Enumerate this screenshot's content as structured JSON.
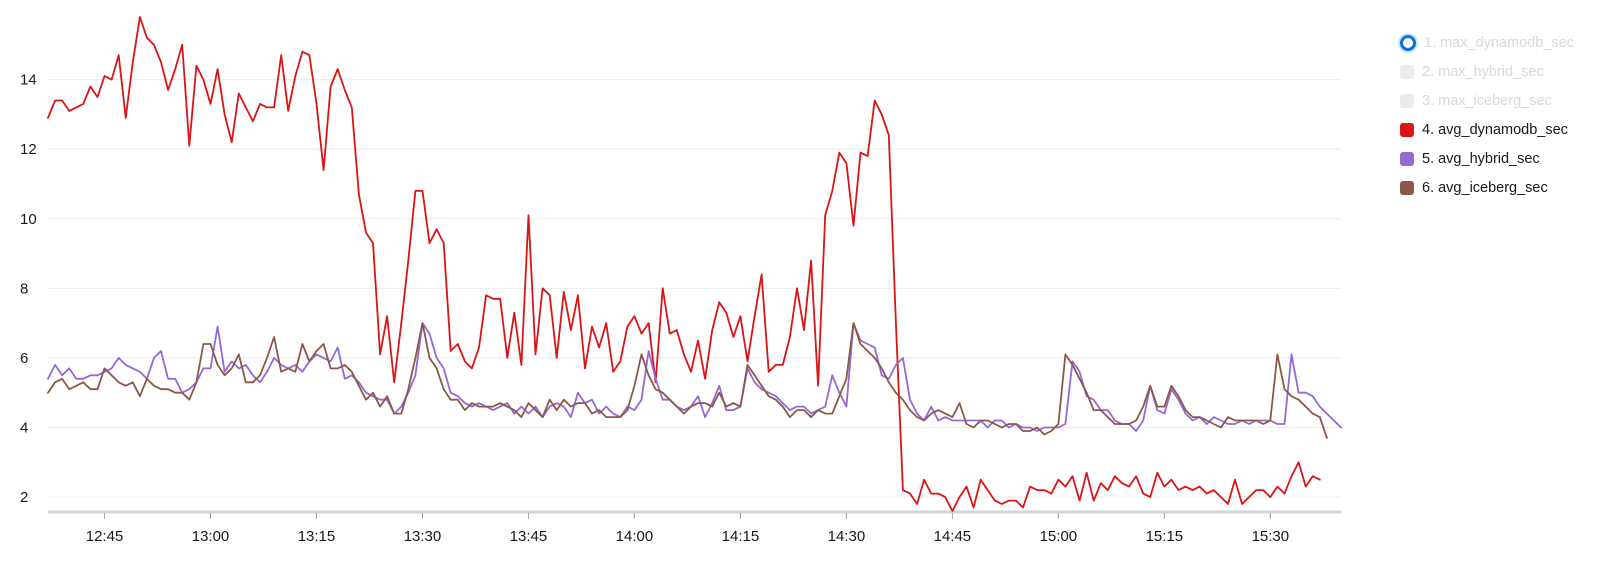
{
  "chart_data": {
    "type": "line",
    "x_start": "12:37",
    "x_interval_min": 1,
    "x_ticks": [
      "12:45",
      "13:00",
      "13:15",
      "13:30",
      "13:45",
      "14:00",
      "14:15",
      "14:30",
      "14:45",
      "15:00",
      "15:15",
      "15:30"
    ],
    "y_ticks": [
      2,
      4,
      6,
      8,
      10,
      12,
      14
    ],
    "ylim": [
      1.6,
      16
    ],
    "grid": true,
    "legend_position": "right",
    "series": [
      {
        "name": "1. max_dynamodb_sec",
        "color": "#0972d3",
        "visible": false,
        "values": []
      },
      {
        "name": "2. max_hybrid_sec",
        "color": "#d5dbdb",
        "visible": false,
        "values": []
      },
      {
        "name": "3. max_iceberg_sec",
        "color": "#d5dbdb",
        "visible": false,
        "values": []
      },
      {
        "name": "4. avg_dynamodb_sec",
        "color": "#d91515",
        "visible": true,
        "values": [
          12.9,
          13.4,
          13.4,
          13.1,
          13.2,
          13.3,
          13.8,
          13.5,
          14.1,
          14,
          14.7,
          12.9,
          14.5,
          15.8,
          15.2,
          15,
          14.5,
          13.7,
          14.3,
          15,
          12.1,
          14.4,
          14,
          13.3,
          14.3,
          13,
          12.2,
          13.6,
          13.2,
          12.8,
          13.3,
          13.2,
          13.2,
          14.7,
          13.1,
          14.1,
          14.8,
          14.7,
          13.3,
          11.4,
          13.8,
          14.3,
          13.7,
          13.2,
          10.7,
          9.6,
          9.3,
          6.1,
          7.2,
          5.3,
          7,
          8.8,
          10.8,
          10.8,
          9.3,
          9.7,
          9.3,
          6.2,
          6.4,
          5.9,
          5.7,
          6.3,
          7.8,
          7.7,
          7.7,
          6,
          7.3,
          5.8,
          10.1,
          6.1,
          8,
          7.8,
          6,
          7.9,
          6.8,
          7.8,
          5.7,
          6.9,
          6.3,
          7,
          5.6,
          5.9,
          6.9,
          7.2,
          6.7,
          7,
          5.3,
          8,
          6.7,
          6.8,
          6.1,
          5.6,
          6.5,
          5.4,
          6.8,
          7.6,
          7.3,
          6.6,
          7.2,
          5.9,
          7.2,
          8.4,
          5.6,
          5.8,
          5.8,
          6.6,
          8,
          6.8,
          8.8,
          5.2,
          10.1,
          10.8,
          11.9,
          11.6,
          9.8,
          11.9,
          11.8,
          13.4,
          13,
          12.4,
          7,
          2.2,
          2.1,
          1.8,
          2.5,
          2.1,
          2.1,
          2,
          1.6,
          2,
          2.3,
          1.7,
          2.5,
          2.2,
          1.9,
          1.8,
          1.9,
          1.9,
          1.7,
          2.3,
          2.2,
          2.2,
          2.1,
          2.5,
          2.3,
          2.6,
          1.9,
          2.7,
          1.9,
          2.4,
          2.2,
          2.6,
          2.4,
          2.3,
          2.6,
          2.1,
          2,
          2.7,
          2.3,
          2.5,
          2.2,
          2.3,
          2.2,
          2.3,
          2.1,
          2.2,
          2,
          1.8,
          2.5,
          1.8,
          2,
          2.2,
          2.2,
          2,
          2.3,
          2.1,
          2.6,
          3,
          2.3,
          2.6,
          2.5
        ]
      },
      {
        "name": "5. avg_hybrid_sec",
        "color": "#9469d6",
        "visible": true,
        "values": [
          5.4,
          5.8,
          5.5,
          5.7,
          5.4,
          5.4,
          5.5,
          5.5,
          5.6,
          5.7,
          6,
          5.8,
          5.7,
          5.6,
          5.4,
          6,
          6.2,
          5.4,
          5.4,
          5,
          5.1,
          5.3,
          5.7,
          5.7,
          6.9,
          5.6,
          5.9,
          5.7,
          5.8,
          5.5,
          5.3,
          5.6,
          6,
          5.8,
          5.7,
          5.8,
          5.6,
          5.9,
          6.1,
          6,
          5.9,
          6.3,
          5.4,
          5.5,
          5.3,
          5,
          4.9,
          4.8,
          4.8,
          4.4,
          4.6,
          5,
          5.5,
          7,
          6.7,
          6,
          5.7,
          5,
          4.9,
          4.7,
          4.6,
          4.7,
          4.6,
          4.5,
          4.6,
          4.7,
          4.4,
          4.6,
          4.4,
          4.6,
          4.3,
          4.6,
          4.7,
          4.6,
          4.3,
          5,
          4.7,
          4.8,
          4.4,
          4.6,
          4.4,
          4.3,
          4.6,
          4.5,
          4.8,
          6.2,
          5.4,
          4.8,
          4.8,
          4.6,
          4.5,
          4.6,
          4.9,
          4.3,
          4.7,
          5.2,
          4.5,
          4.5,
          4.6,
          5.7,
          5.3,
          5.1,
          5,
          4.9,
          4.7,
          4.5,
          4.6,
          4.6,
          4.4,
          4.5,
          4.6,
          5.5,
          5,
          4.6,
          7,
          6.5,
          6.4,
          6.3,
          5.5,
          5.4,
          5.8,
          6,
          4.8,
          4.4,
          4.2,
          4.6,
          4.2,
          4.3,
          4.2,
          4.2,
          4.2,
          4.2,
          4.2,
          4,
          4.2,
          4.2,
          4,
          4.1,
          4,
          4,
          3.9,
          4,
          4,
          4,
          4.1,
          5.9,
          5.6,
          4.9,
          4.8,
          4.5,
          4.5,
          4.2,
          4.1,
          4.1,
          3.9,
          4.2,
          5.2,
          4.5,
          4.4,
          5.1,
          4.8,
          4.4,
          4.2,
          4.3,
          4.1,
          4.3,
          4.2,
          4.1,
          4.1,
          4.2,
          4.1,
          4.2,
          4.2,
          4.2,
          4.1,
          4.1,
          6.1,
          5,
          5,
          4.9,
          4.6,
          4.4,
          4.2,
          4
        ]
      },
      {
        "name": "6. avg_iceberg_sec",
        "color": "#8d5748",
        "visible": true,
        "values": [
          5,
          5.3,
          5.4,
          5.1,
          5.2,
          5.3,
          5.1,
          5.1,
          5.7,
          5.5,
          5.3,
          5.2,
          5.3,
          4.9,
          5.4,
          5.2,
          5.1,
          5.1,
          5,
          5,
          4.8,
          5.3,
          6.4,
          6.4,
          5.8,
          5.5,
          5.7,
          6.1,
          5.3,
          5.3,
          5.5,
          6,
          6.6,
          5.6,
          5.7,
          5.6,
          6.4,
          5.9,
          6.2,
          6.4,
          5.7,
          5.7,
          5.8,
          5.6,
          5.2,
          4.8,
          5,
          4.6,
          4.9,
          4.4,
          4.4,
          5.1,
          6,
          7,
          6,
          5.7,
          5.1,
          4.8,
          4.8,
          4.5,
          4.7,
          4.6,
          4.6,
          4.6,
          4.7,
          4.6,
          4.5,
          4.3,
          4.7,
          4.5,
          4.3,
          4.8,
          4.5,
          4.8,
          4.6,
          4.7,
          4.7,
          4.4,
          4.5,
          4.3,
          4.3,
          4.3,
          4.5,
          5.2,
          6.1,
          5.5,
          5.1,
          5,
          4.8,
          4.6,
          4.4,
          4.6,
          4.7,
          4.7,
          4.6,
          5,
          4.6,
          4.7,
          4.6,
          5.8,
          5.5,
          5.2,
          4.9,
          4.8,
          4.6,
          4.3,
          4.5,
          4.5,
          4.3,
          4.5,
          4.4,
          4.4,
          4.9,
          5.4,
          7,
          6.4,
          6.2,
          6,
          5.7,
          5.3,
          5,
          4.8,
          4.5,
          4.3,
          4.2,
          4.4,
          4.5,
          4.4,
          4.3,
          4.7,
          4.1,
          4,
          4.2,
          4.2,
          4.1,
          4,
          4.1,
          4.1,
          3.9,
          3.9,
          4,
          3.8,
          3.9,
          4.1,
          6.1,
          5.8,
          5.4,
          5,
          4.5,
          4.5,
          4.3,
          4.1,
          4.1,
          4.1,
          4.2,
          4.6,
          5.2,
          4.6,
          4.6,
          5.2,
          4.9,
          4.5,
          4.3,
          4.3,
          4.2,
          4.1,
          4,
          4.3,
          4.2,
          4.2,
          4.2,
          4.2,
          4.1,
          4.2,
          6.1,
          5.1,
          4.9,
          4.8,
          4.6,
          4.4,
          4.3,
          3.7
        ]
      }
    ]
  }
}
